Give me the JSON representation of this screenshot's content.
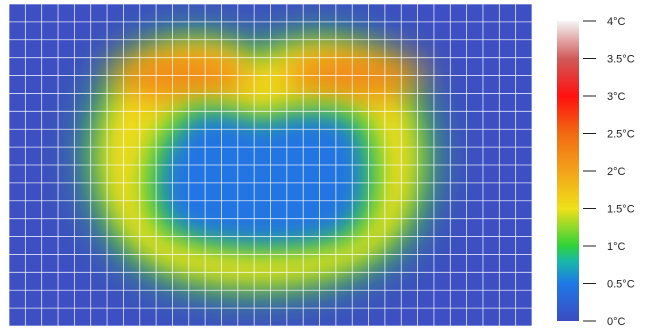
{
  "chart_data": {
    "type": "heatmap",
    "title": "",
    "xlabel": "",
    "ylabel": "",
    "grid": true,
    "grid_columns": 32,
    "grid_rows": 18,
    "colorbar": {
      "range": [
        0,
        4
      ],
      "unit": "°C",
      "ticks": [
        {
          "value": 4,
          "label": "4°C"
        },
        {
          "value": 3.5,
          "label": "3.5°C"
        },
        {
          "value": 3,
          "label": "3°C"
        },
        {
          "value": 2.5,
          "label": "2.5°C"
        },
        {
          "value": 2,
          "label": "2°C"
        },
        {
          "value": 1.5,
          "label": "1.5°C"
        },
        {
          "value": 1,
          "label": "1°C"
        },
        {
          "value": 0.5,
          "label": "0.5°C"
        },
        {
          "value": 0,
          "label": "0°C"
        }
      ],
      "colors": [
        {
          "value": 0,
          "color": "#3b4cc0"
        },
        {
          "value": 0.5,
          "color": "#1f78e6"
        },
        {
          "value": 0.8,
          "color": "#19b8a8"
        },
        {
          "value": 1.0,
          "color": "#2fd23a"
        },
        {
          "value": 1.5,
          "color": "#f0e01a"
        },
        {
          "value": 2.0,
          "color": "#f2a21a"
        },
        {
          "value": 2.5,
          "color": "#f26a12"
        },
        {
          "value": 3.0,
          "color": "#ff1010"
        },
        {
          "value": 3.5,
          "color": "#d05a5a"
        },
        {
          "value": 4.0,
          "color": "#f5f5f5"
        }
      ]
    },
    "field": {
      "description_values": "temperature distribution, ring shaped hot zone over cool background",
      "background_value": 0.2,
      "ring_value": 1.55,
      "hot_spots_value": 2.25,
      "center_value": 0.45
    }
  }
}
